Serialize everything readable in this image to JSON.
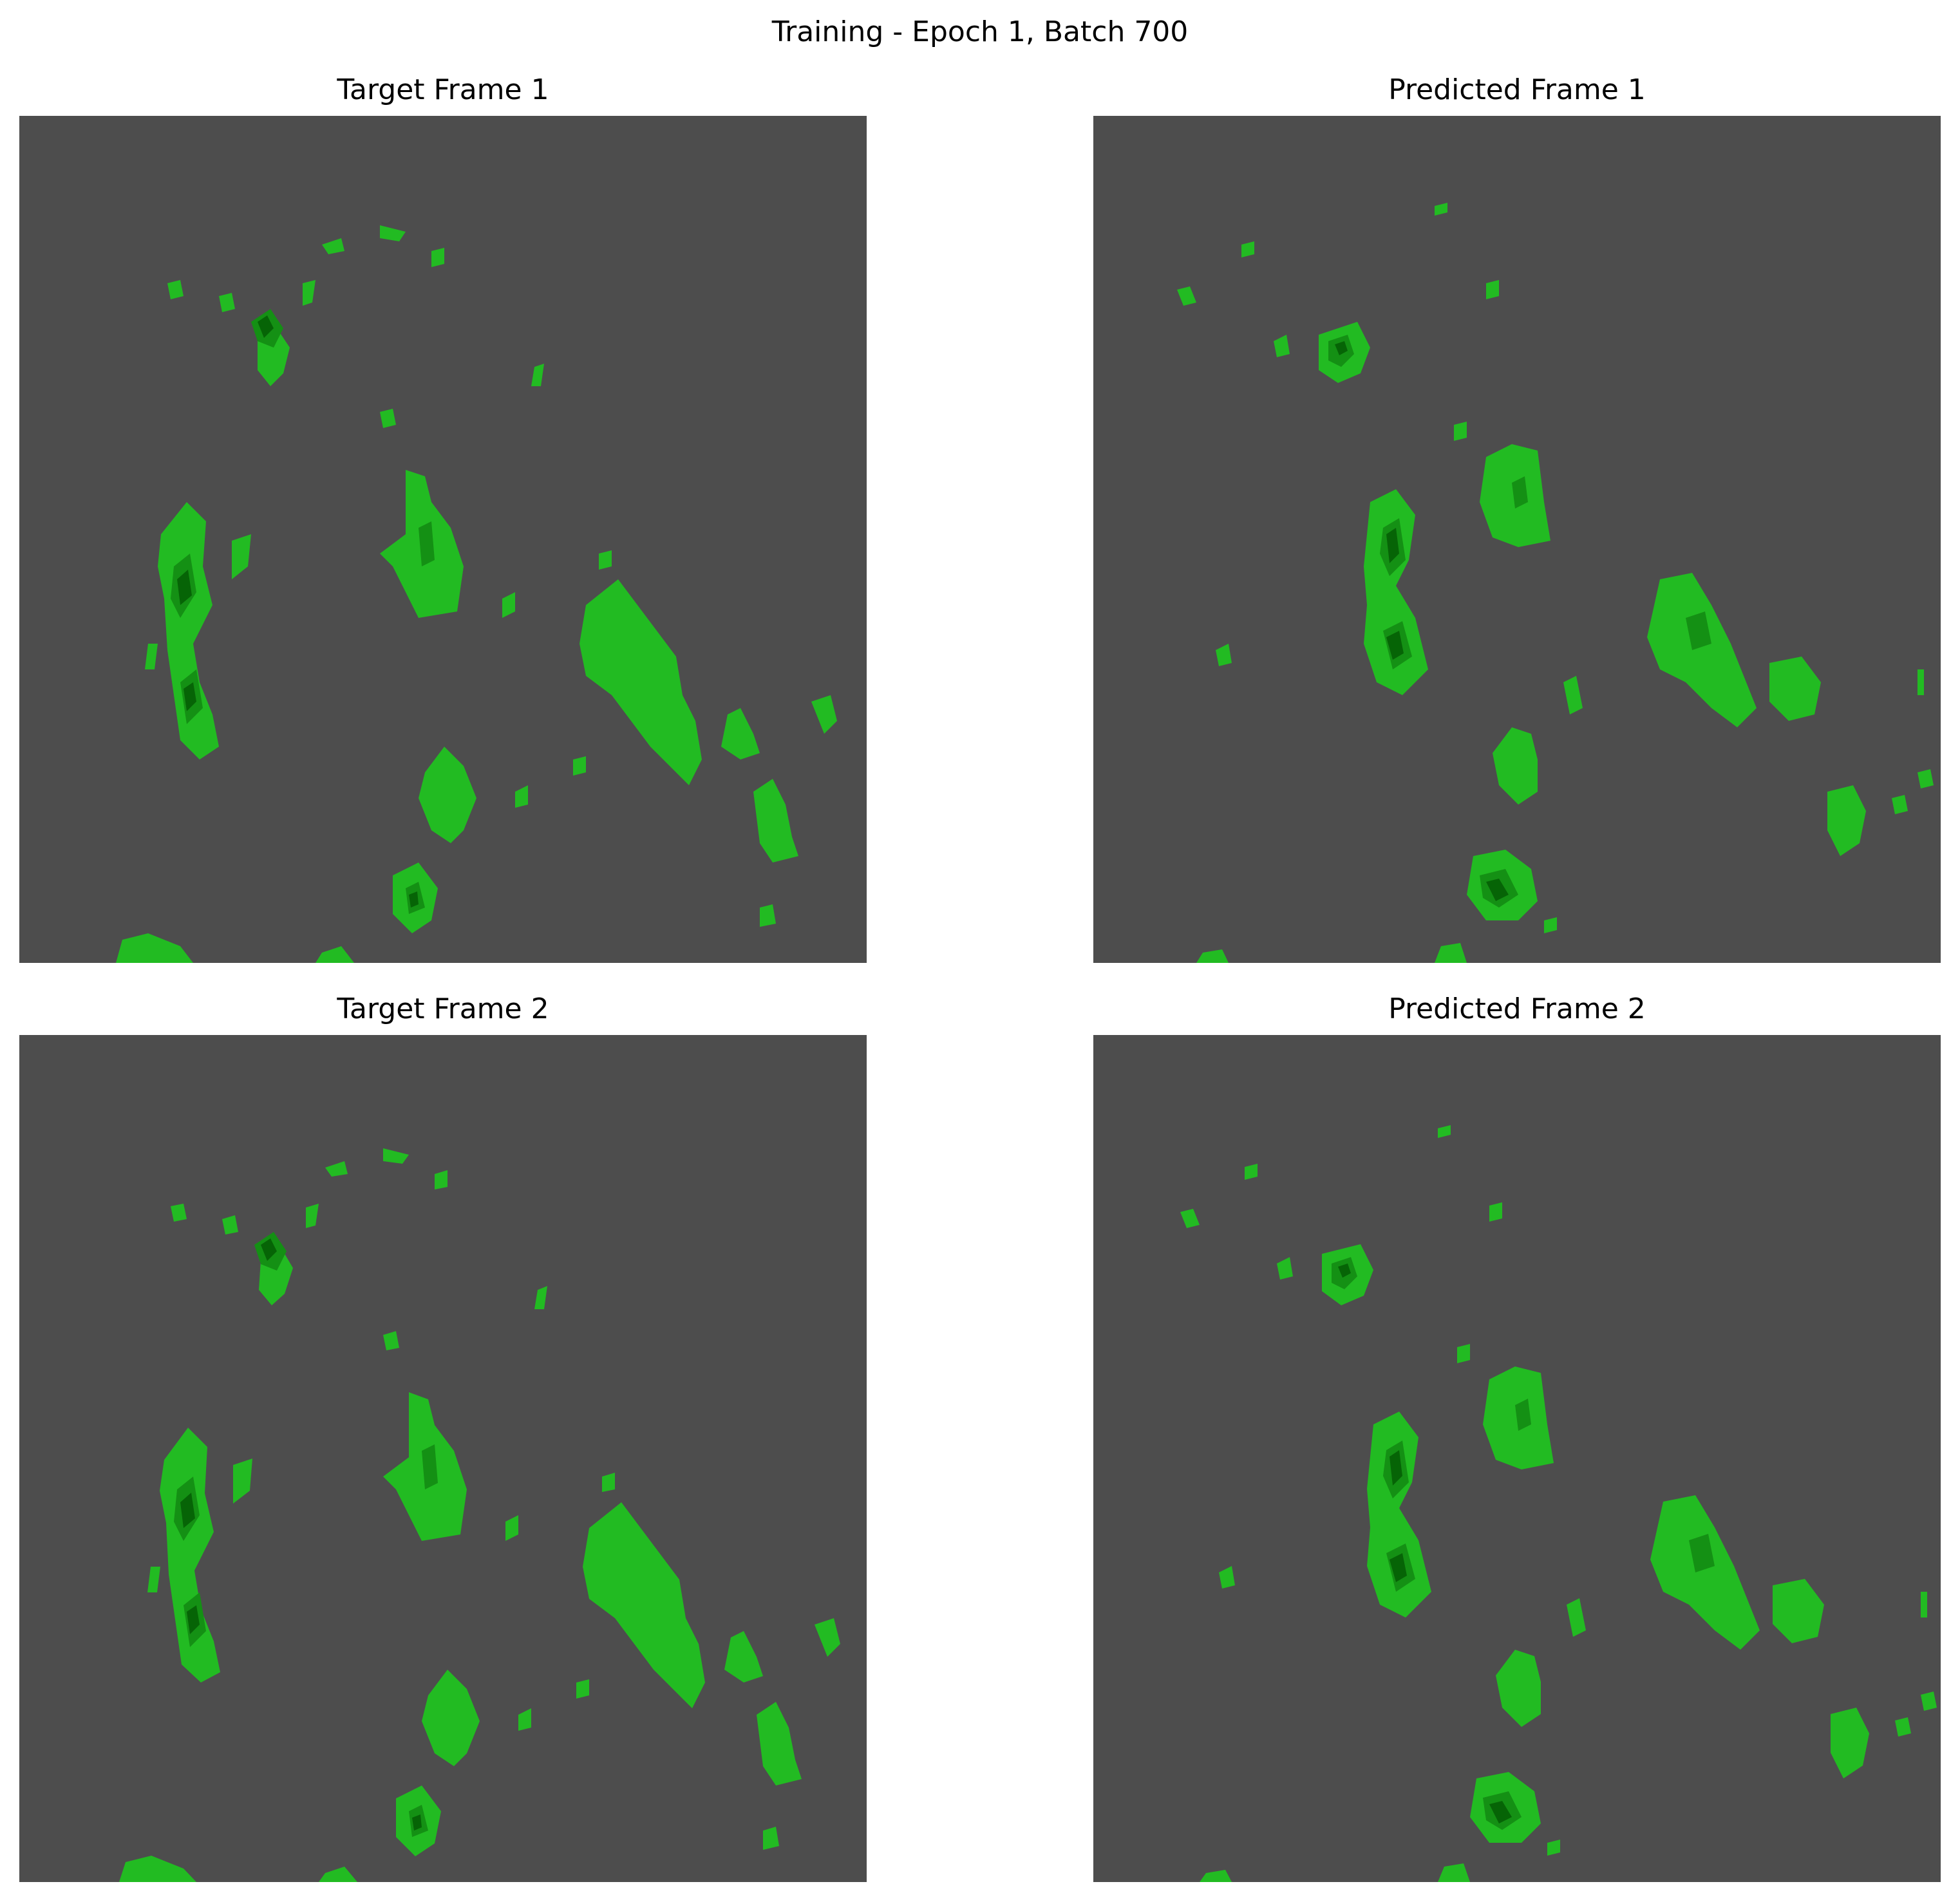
{
  "figure": {
    "suptitle": "Training - Epoch 1, Batch 700",
    "panels": [
      {
        "id": "t1",
        "title": "Target Frame 1"
      },
      {
        "id": "p1",
        "title": "Predicted Frame 1"
      },
      {
        "id": "t2",
        "title": "Target Frame 2"
      },
      {
        "id": "p2",
        "title": "Predicted Frame 2"
      }
    ]
  },
  "colors": {
    "background": "#4d4d4d",
    "level_light": "#22bb22",
    "level_mid": "#149014",
    "level_dark": "#066406"
  }
}
